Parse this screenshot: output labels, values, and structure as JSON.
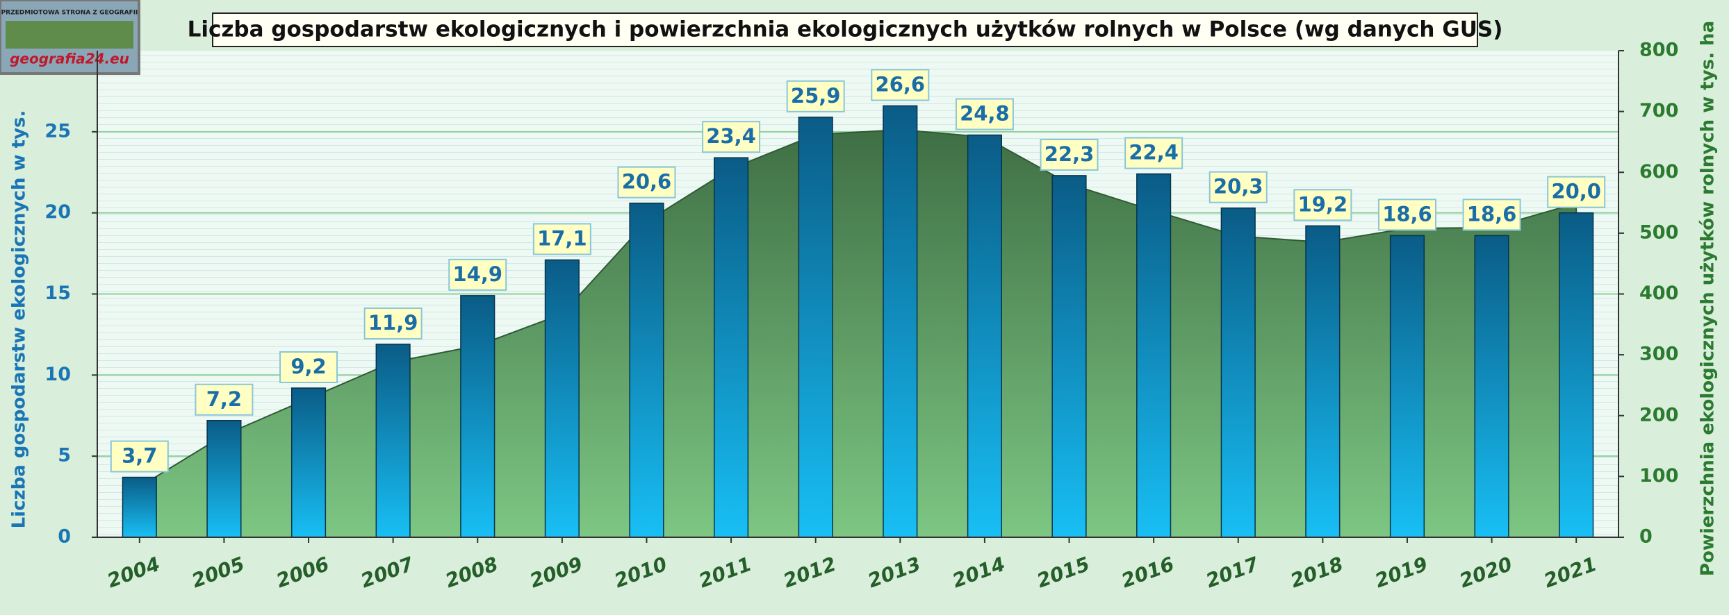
{
  "chart_data": {
    "type": "bar",
    "title": "Liczba gospodarstw ekologicznych i powierzchnia ekologicznych użytków rolnych w Polsce (wg danych GUS)",
    "logo_caption": "PRZEDMIOTOWA STRONA Z GEOGRAFII",
    "logo_text": "geografia24.eu",
    "y_label": "Liczba gospodarstw ekologicznych w tys.",
    "y2_label": "Powierzchnia ekologicznych użytków rolnych w tys. ha",
    "categories": [
      "2004",
      "2005",
      "2006",
      "2007",
      "2008",
      "2009",
      "2010",
      "2011",
      "2012",
      "2013",
      "2014",
      "2015",
      "2016",
      "2017",
      "2018",
      "2019",
      "2020",
      "2021"
    ],
    "series": [
      {
        "type": "bar",
        "color": "#0a6a98",
        "values": [
          3.7,
          7.2,
          9.2,
          11.9,
          14.9,
          17.1,
          20.6,
          23.4,
          25.9,
          26.6,
          24.8,
          22.3,
          22.4,
          20.3,
          19.2,
          18.6,
          18.6,
          20.0
        ],
        "value_labels": [
          "3,7",
          "7,2",
          "9,2",
          "11,9",
          "14,9",
          "17,1",
          "20,6",
          "23,4",
          "25,9",
          "26,6",
          "24,8",
          "22,3",
          "22,4",
          "20,3",
          "19,2",
          "18,6",
          "18,6",
          "20,0"
        ]
      },
      {
        "type": "area",
        "axis": "y2",
        "color": "#5a9a5e",
        "values": [
          83,
          168,
          228,
          288,
          315,
          367,
          519,
          606,
          662,
          670,
          658,
          581,
          537,
          495,
          485,
          508,
          509,
          549
        ]
      }
    ],
    "ylim": [
      0,
      30
    ],
    "yticks": [
      0,
      5,
      10,
      15,
      20,
      25
    ],
    "y2lim": [
      0,
      800
    ],
    "y2ticks": [
      0,
      100,
      200,
      300,
      400,
      500,
      600,
      700,
      800
    ],
    "grid": true
  }
}
